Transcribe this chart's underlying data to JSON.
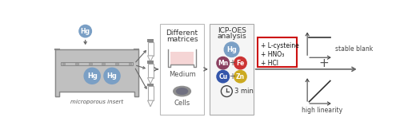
{
  "bg_color": "#ffffff",
  "figure_width": 5.0,
  "figure_height": 1.72,
  "dpi": 100,
  "arrow_color": "#666666",
  "panel_border_color": "#bbbbbb",
  "tub_fill": "#f5d5d5",
  "tub_border": "#888888",
  "tub_top_fill": "#e8e8e8",
  "hg_ball_color": "#7a9fc5",
  "hg_ball_text": "Hg",
  "hg_text_color": "#ffffff",
  "tube_cap_color": "#888888",
  "tube_medium_color": "#f5d5d5",
  "tube_cell_color": "#9090a0",
  "medium_label": "Medium",
  "cells_label": "Cells",
  "matrices_title1": "Different",
  "matrices_title2": "matrices",
  "icp_title1": "ICP-OES",
  "icp_title2": "analysis",
  "icp_border_color": "#aaaaaa",
  "icp_bg_color": "#f5f5f5",
  "mn_color": "#8b4060",
  "fe_color": "#cc3333",
  "cu_color": "#3355aa",
  "zn_color": "#ccaa20",
  "reagent_box_color": "#cc1111",
  "reagents": [
    "+ L-cysteine",
    "+ HNO₃",
    "+ HCl"
  ],
  "reagent_text_color": "#111111",
  "time_label": "3 min",
  "plus_label": "+",
  "stable_blank_label": "stable blank",
  "high_linearity_label": "high linearity",
  "microporous_label": "microporous insert"
}
